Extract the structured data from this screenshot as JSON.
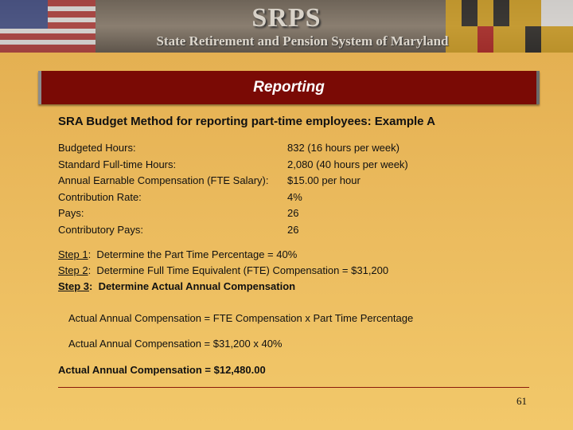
{
  "header": {
    "logo": "SRPS",
    "subtitle": "State Retirement and Pension System of Maryland"
  },
  "title": "Reporting",
  "heading": "SRA Budget Method for reporting part-time employees: Example A",
  "rows": [
    [
      "Budgeted Hours:",
      "832 (16 hours per week)"
    ],
    [
      "Standard Full-time Hours:",
      "2,080 (40 hours per week)"
    ],
    [
      "Annual Earnable Compensation (FTE Salary):",
      "$15.00 per hour"
    ],
    [
      "Contribution Rate:",
      "4%"
    ],
    [
      "Pays:",
      "26"
    ],
    [
      "Contributory Pays:",
      "26"
    ]
  ],
  "steps": [
    {
      "label": "Step 1",
      "text": ":  Determine the Part Time Percentage = 40%"
    },
    {
      "label": "Step 2",
      "text": ":  Determine Full Time Equivalent (FTE) Compensation = $31,200"
    },
    {
      "label": "Step 3",
      "text": ":  Determine Actual Annual Compensation"
    }
  ],
  "formulas": [
    "Actual Annual Compensation = FTE Compensation x Part Time Percentage",
    "Actual Annual Compensation = $31,200 x 40%"
  ],
  "result": "Actual Annual Compensation = $12,480.00",
  "page_number": "61"
}
